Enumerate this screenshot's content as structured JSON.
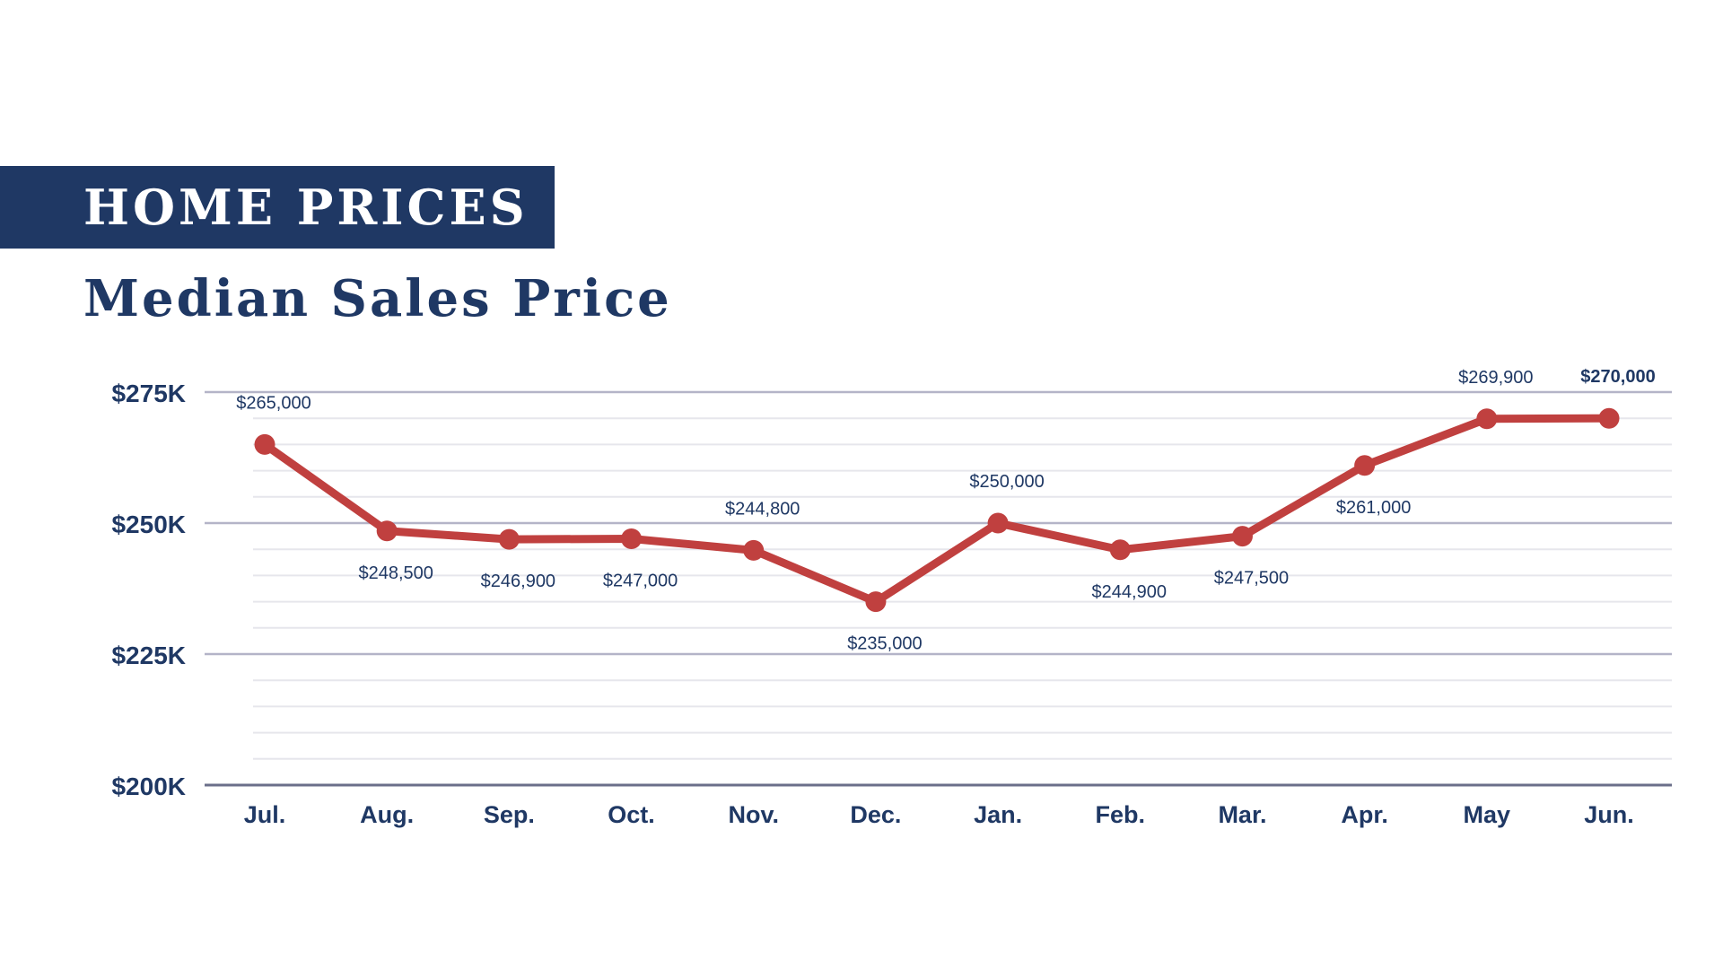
{
  "header": {
    "banner_title": "HOME PRICES",
    "subtitle": "Median Sales Price"
  },
  "colors": {
    "banner_bg": "#1f3864",
    "text": "#1f3864",
    "line": "#c0403f",
    "major_grid": "#b4b4c8",
    "minor_grid": "#e6e6ec",
    "axis": "#6b6f8a"
  },
  "chart_data": {
    "type": "line",
    "title": "",
    "xlabel": "",
    "ylabel": "",
    "categories": [
      "Jul.",
      "Aug.",
      "Sep.",
      "Oct.",
      "Nov.",
      "Dec.",
      "Jan.",
      "Feb.",
      "Mar.",
      "Apr.",
      "May",
      "Jun."
    ],
    "series": [
      {
        "values": [
          265000,
          248500,
          246900,
          247000,
          244800,
          235000,
          250000,
          244900,
          247500,
          261000,
          269900,
          270000
        ]
      }
    ],
    "data_labels": [
      "$265,000",
      "$248,500",
      "$246,900",
      "$247,000",
      "$244,800",
      "$235,000",
      "$250,000",
      "$244,900",
      "$247,500",
      "$261,000",
      "$269,900",
      "$270,000"
    ],
    "label_position": [
      "above",
      "below",
      "below",
      "below",
      "above",
      "below",
      "above",
      "below",
      "below",
      "below",
      "above",
      "above"
    ],
    "bold_labels": [
      false,
      false,
      false,
      false,
      false,
      false,
      false,
      false,
      false,
      false,
      false,
      true
    ],
    "ylim": [
      200000,
      275000
    ],
    "y_ticks": [
      200000,
      225000,
      250000,
      275000
    ],
    "y_tick_labels": [
      "$200K",
      "$225K",
      "$250K",
      "$275K"
    ],
    "minor_gridline_step": 5000,
    "grid": true,
    "legend": "none"
  }
}
